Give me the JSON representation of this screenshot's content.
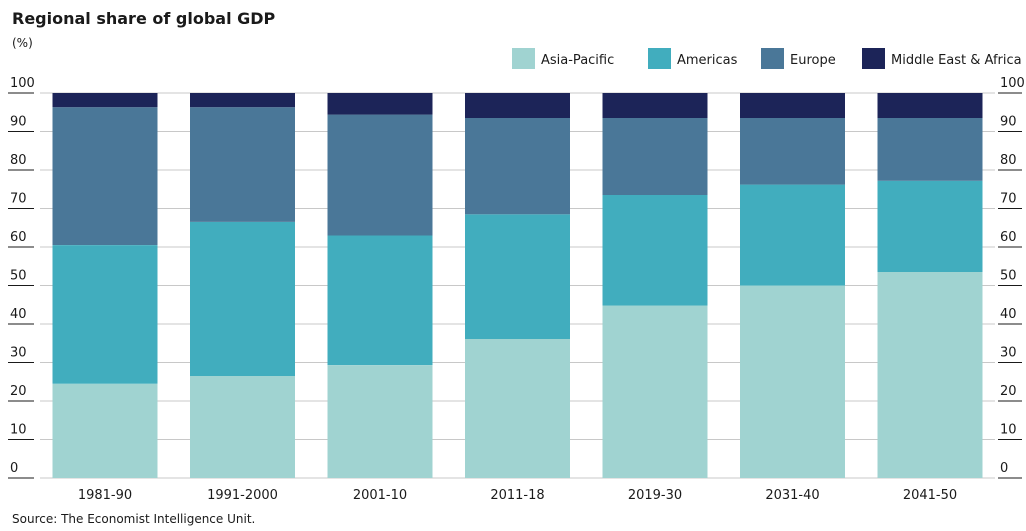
{
  "chart_data": {
    "type": "bar",
    "stacked": true,
    "title": "Regional share of global GDP",
    "subtitle": "(%)",
    "source": "Source: The Economist Intelligence Unit.",
    "categories": [
      "1981-90",
      "1991-2000",
      "2001-10",
      "2011-18",
      "2019-30",
      "2031-40",
      "2041-50"
    ],
    "series": [
      {
        "name": "Asia-Pacific",
        "color": "#a0d3d1",
        "values": [
          24.5,
          26.5,
          29.3,
          36.1,
          44.8,
          50.0,
          53.5
        ]
      },
      {
        "name": "Americas",
        "color": "#41adbe",
        "values": [
          36.0,
          40.0,
          33.7,
          32.4,
          28.7,
          26.2,
          23.7
        ]
      },
      {
        "name": "Europe",
        "color": "#4a7798",
        "values": [
          35.8,
          29.8,
          31.4,
          25.0,
          20.0,
          17.3,
          16.3
        ]
      },
      {
        "name": "Middle East & Africa",
        "color": "#1c2458",
        "values": [
          3.7,
          3.7,
          5.6,
          6.5,
          6.5,
          6.5,
          6.5
        ]
      }
    ],
    "ylim": [
      0,
      100
    ],
    "yticks": [
      0,
      10,
      20,
      30,
      40,
      50,
      60,
      70,
      80,
      90,
      100
    ],
    "y_axis_both_sides": true,
    "grid": true,
    "legend_position": "top-right"
  }
}
